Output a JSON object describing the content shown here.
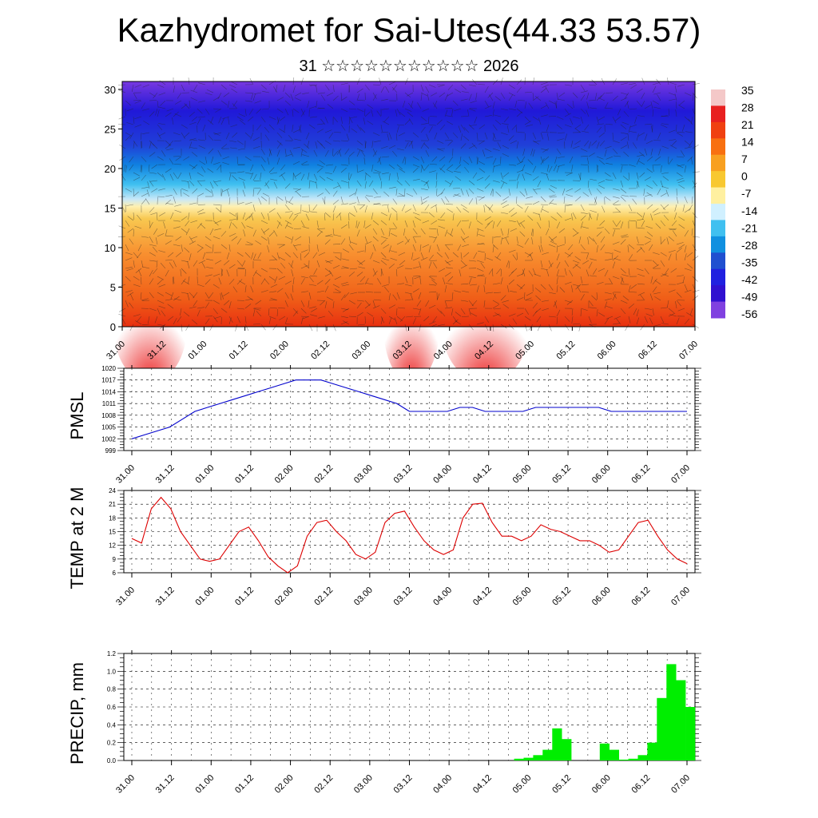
{
  "title": "Kazhydromet for Sai-Utes(44.33 53.57)",
  "subtitle": "31 ☆☆☆☆☆☆☆☆☆☆☆ 2026",
  "time_labels": [
    "31.00",
    "31.12",
    "01.00",
    "01.12",
    "02.00",
    "02.12",
    "03.00",
    "03.12",
    "04.00",
    "04.12",
    "05.00",
    "05.12",
    "06.00",
    "06.12",
    "07.00"
  ],
  "chart_data": [
    {
      "type": "heatmap",
      "name": "cross-section",
      "ylim": [
        0,
        31
      ],
      "yticks": [
        0,
        5,
        10,
        15,
        20,
        25,
        30
      ],
      "colorbar_labels": [
        "35",
        "28",
        "21",
        "14",
        "7",
        "0",
        "-7",
        "-14",
        "-21",
        "-28",
        "-35",
        "-42",
        "-49",
        "-56"
      ],
      "colorbar_colors": [
        "#f4c8c8",
        "#e82020",
        "#f04010",
        "#f87010",
        "#f8a020",
        "#f8c830",
        "#fff0a0",
        "#d0f0ff",
        "#40c0f0",
        "#1090e0",
        "#2050d0",
        "#2020e0",
        "#3010d0",
        "#8040e0"
      ]
    },
    {
      "type": "line",
      "ylabel": "PMSL",
      "ylim": [
        999,
        1020
      ],
      "yticks": [
        "999",
        "1002",
        "1005",
        "1008",
        "1011",
        "1014",
        "1017",
        "1020"
      ],
      "color": "#0000cc",
      "values": [
        1002,
        1003,
        1004,
        1005,
        1007,
        1009,
        1010,
        1011,
        1012,
        1013,
        1014,
        1015,
        1016,
        1017,
        1017,
        1017,
        1016,
        1015,
        1014,
        1013,
        1012,
        1011,
        1009,
        1009,
        1009,
        1009,
        1010,
        1010,
        1009,
        1009,
        1009,
        1009,
        1010,
        1010,
        1010,
        1010,
        1010,
        1010,
        1009,
        1009,
        1009,
        1009,
        1009,
        1009,
        1009
      ]
    },
    {
      "type": "line",
      "ylabel": "TEMP at 2 M",
      "ylim": [
        6,
        24
      ],
      "yticks": [
        "6",
        "9",
        "12",
        "15",
        "18",
        "21",
        "24"
      ],
      "color": "#dd0000",
      "values": [
        13.5,
        12.5,
        20,
        22.5,
        20,
        15,
        12,
        9,
        8.5,
        9,
        12,
        15,
        16,
        13,
        9.5,
        7.5,
        6,
        7.5,
        14,
        17,
        17.5,
        15,
        13,
        10,
        9,
        10.5,
        17,
        19,
        19.5,
        16,
        13,
        11,
        10,
        11,
        18,
        21,
        21.2,
        17,
        14,
        14,
        13,
        14,
        16.5,
        15.5,
        15,
        14,
        13,
        13,
        12,
        10.5,
        11,
        14,
        17,
        17.5,
        14,
        11,
        9,
        8
      ]
    },
    {
      "type": "bar",
      "ylabel": "PRECIP, mm",
      "ylim": [
        0,
        1.2
      ],
      "yticks": [
        "0.0",
        "0.2",
        "0.4",
        "0.6",
        "0.8",
        "1.0",
        "1.2"
      ],
      "color": "#00ee00",
      "values": [
        0,
        0,
        0,
        0,
        0,
        0,
        0,
        0,
        0,
        0,
        0,
        0,
        0,
        0,
        0,
        0,
        0,
        0,
        0,
        0,
        0,
        0,
        0,
        0,
        0,
        0,
        0,
        0,
        0,
        0,
        0,
        0,
        0,
        0,
        0,
        0,
        0,
        0,
        0,
        0,
        0,
        0.02,
        0.03,
        0.06,
        0.12,
        0.36,
        0.24,
        0,
        0,
        0,
        0.19,
        0.12,
        0.01,
        0.02,
        0.06,
        0.2,
        0.7,
        1.08,
        0.9,
        0.6
      ]
    }
  ]
}
